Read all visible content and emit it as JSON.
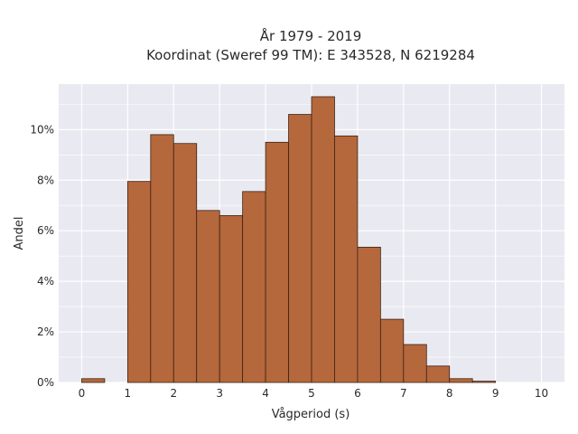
{
  "chart_data": {
    "type": "bar",
    "title_line1": "År 1979 - 2019",
    "title_line2": "Koordinat (Sweref 99 TM): E 343528, N 6219284",
    "xlabel": "Vågperiod (s)",
    "ylabel": "Andel",
    "xlim": [
      -0.5,
      10.5
    ],
    "ylim": [
      0,
      11.8
    ],
    "x_ticks": [
      0,
      1,
      2,
      3,
      4,
      5,
      6,
      7,
      8,
      9,
      10
    ],
    "x_tick_labels": [
      "0",
      "1",
      "2",
      "3",
      "4",
      "5",
      "6",
      "7",
      "8",
      "9",
      "10"
    ],
    "y_ticks": [
      0,
      2,
      4,
      6,
      8,
      10
    ],
    "y_tick_labels": [
      "0%",
      "2%",
      "4%",
      "6%",
      "8%",
      "10%"
    ],
    "bin_width": 0.5,
    "bins": [
      {
        "x0": 0.0,
        "x1": 0.5,
        "value": 0.15
      },
      {
        "x0": 1.0,
        "x1": 1.5,
        "value": 7.95
      },
      {
        "x0": 1.5,
        "x1": 2.0,
        "value": 9.8
      },
      {
        "x0": 2.0,
        "x1": 2.5,
        "value": 9.45
      },
      {
        "x0": 2.5,
        "x1": 3.0,
        "value": 6.8
      },
      {
        "x0": 3.0,
        "x1": 3.5,
        "value": 6.6
      },
      {
        "x0": 3.5,
        "x1": 4.0,
        "value": 7.55
      },
      {
        "x0": 4.0,
        "x1": 4.5,
        "value": 9.5
      },
      {
        "x0": 4.5,
        "x1": 5.0,
        "value": 10.6
      },
      {
        "x0": 5.0,
        "x1": 5.5,
        "value": 11.3
      },
      {
        "x0": 5.5,
        "x1": 6.0,
        "value": 9.75
      },
      {
        "x0": 6.0,
        "x1": 6.5,
        "value": 5.35
      },
      {
        "x0": 6.5,
        "x1": 7.0,
        "value": 2.5
      },
      {
        "x0": 7.0,
        "x1": 7.5,
        "value": 1.5
      },
      {
        "x0": 7.5,
        "x1": 8.0,
        "value": 0.65
      },
      {
        "x0": 8.0,
        "x1": 8.5,
        "value": 0.15
      },
      {
        "x0": 8.5,
        "x1": 9.0,
        "value": 0.05
      }
    ],
    "grid": true,
    "legend": "none",
    "colors": {
      "bar_fill": "#b5683c",
      "bar_edge": "#3b2214",
      "plot_background": "#e9e9f1",
      "grid": "#ffffff"
    }
  }
}
